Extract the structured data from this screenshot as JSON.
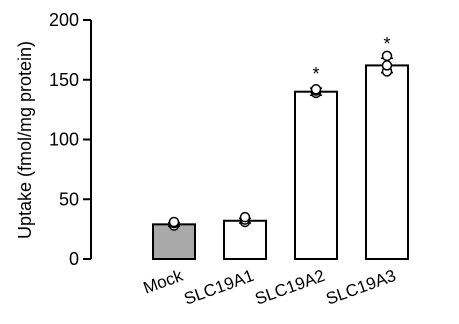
{
  "chart_data": {
    "type": "bar",
    "title": "",
    "xlabel": "",
    "ylabel": "Uptake (fmol/mg protein)",
    "ylim": [
      0,
      200
    ],
    "yticks": [
      0,
      50,
      100,
      150,
      200
    ],
    "grid": false,
    "categories": [
      "Mock",
      "SLC19A1",
      "SLC19A2",
      "SLC19A3"
    ],
    "values": [
      29,
      32,
      140,
      162
    ],
    "errors": [
      1.5,
      2,
      3,
      6
    ],
    "points": [
      [
        28,
        30,
        31
      ],
      [
        31,
        33,
        35
      ],
      [
        139,
        141,
        142
      ],
      [
        157,
        162,
        170
      ]
    ],
    "significance": [
      "",
      "",
      "*",
      "*"
    ],
    "bar_colors": [
      "#a9a9a9",
      "#ffffff",
      "#ffffff",
      "#ffffff"
    ]
  }
}
